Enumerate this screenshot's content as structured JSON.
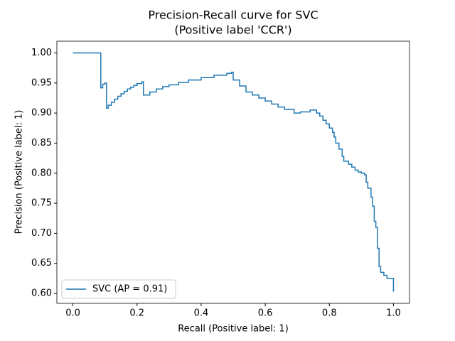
{
  "chart_data": {
    "type": "line",
    "title": "Precision-Recall curve for SVC",
    "subtitle": "(Positive label 'CCR')",
    "x_label": "Recall (Positive label: 1)",
    "y_label": "Precision (Positive label: 1)",
    "drawstyle": "steps-post",
    "legend": "lower left",
    "xlim": [
      -0.05,
      1.05
    ],
    "ylim": [
      0.5835,
      1.0195
    ],
    "xticks": [
      {
        "value": 0,
        "label": "0.0"
      },
      {
        "value": 0.2,
        "label": "0.2"
      },
      {
        "value": 0.4,
        "label": "0.4"
      },
      {
        "value": 0.6,
        "label": "0.6"
      },
      {
        "value": 0.8,
        "label": "0.8"
      },
      {
        "value": 1,
        "label": "1.0"
      }
    ],
    "yticks": [
      {
        "value": 0.6,
        "label": "0.60"
      },
      {
        "value": 0.65,
        "label": "0.65"
      },
      {
        "value": 0.7,
        "label": "0.70"
      },
      {
        "value": 0.75,
        "label": "0.75"
      },
      {
        "value": 0.8,
        "label": "0.80"
      },
      {
        "value": 0.85,
        "label": "0.85"
      },
      {
        "value": 0.9,
        "label": "0.90"
      },
      {
        "value": 0.95,
        "label": "0.95"
      },
      {
        "value": 1,
        "label": "1.00"
      }
    ],
    "series": [
      {
        "name": "SVC (AP = 0.91)",
        "color": "#1f77b4",
        "x": [
          0,
          0.087,
          0.093,
          0.1,
          0.105,
          0.11,
          0.12,
          0.13,
          0.14,
          0.15,
          0.16,
          0.17,
          0.18,
          0.19,
          0.2,
          0.215,
          0.22,
          0.24,
          0.26,
          0.28,
          0.3,
          0.33,
          0.36,
          0.4,
          0.44,
          0.48,
          0.495,
          0.5,
          0.52,
          0.54,
          0.56,
          0.58,
          0.6,
          0.62,
          0.64,
          0.66,
          0.69,
          0.71,
          0.74,
          0.76,
          0.77,
          0.78,
          0.79,
          0.8,
          0.81,
          0.815,
          0.82,
          0.83,
          0.84,
          0.845,
          0.86,
          0.87,
          0.88,
          0.89,
          0.9,
          0.91,
          0.915,
          0.92,
          0.93,
          0.935,
          0.94,
          0.945,
          0.95,
          0.955,
          0.96,
          0.97,
          0.98,
          0.99,
          1.0
        ],
        "values": [
          1.0,
          0.942,
          0.948,
          0.95,
          0.908,
          0.913,
          0.918,
          0.923,
          0.928,
          0.932,
          0.936,
          0.94,
          0.943,
          0.946,
          0.949,
          0.952,
          0.93,
          0.935,
          0.94,
          0.944,
          0.947,
          0.951,
          0.955,
          0.959,
          0.963,
          0.966,
          0.968,
          0.955,
          0.945,
          0.935,
          0.93,
          0.925,
          0.92,
          0.915,
          0.91,
          0.906,
          0.9,
          0.902,
          0.905,
          0.9,
          0.895,
          0.888,
          0.882,
          0.875,
          0.868,
          0.86,
          0.85,
          0.84,
          0.828,
          0.82,
          0.815,
          0.81,
          0.805,
          0.802,
          0.8,
          0.797,
          0.785,
          0.775,
          0.76,
          0.745,
          0.72,
          0.71,
          0.675,
          0.645,
          0.635,
          0.63,
          0.625,
          0.625,
          0.603
        ]
      }
    ]
  }
}
